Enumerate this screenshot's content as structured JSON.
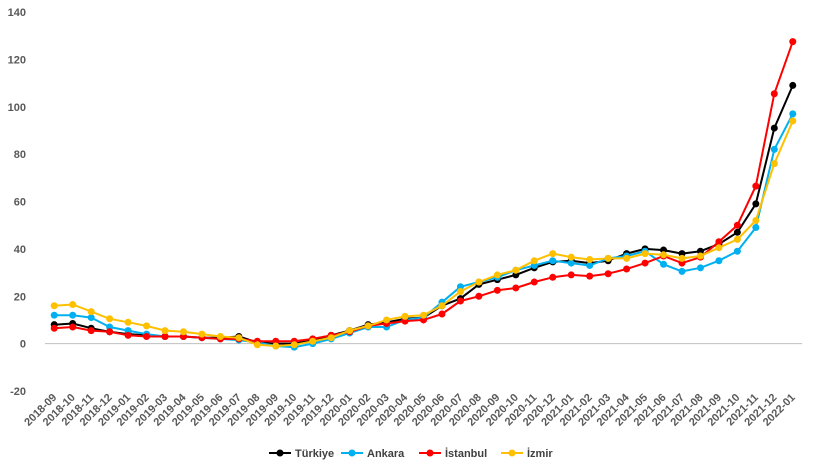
{
  "chart_data": {
    "type": "line",
    "title": "",
    "xlabel": "",
    "ylabel": "",
    "ylim": [
      -20,
      140
    ],
    "y_ticks": [
      -20,
      0,
      20,
      40,
      60,
      80,
      100,
      120,
      140
    ],
    "grid": false,
    "legend_position": "bottom",
    "categories": [
      "2018-09",
      "2018-10",
      "2018-11",
      "2018-12",
      "2019-01",
      "2019-02",
      "2019-03",
      "2019-04",
      "2019-05",
      "2019-06",
      "2019-07",
      "2019-08",
      "2019-09",
      "2019-10",
      "2019-11",
      "2019-12",
      "2020-01",
      "2020-02",
      "2020-03",
      "2020-04",
      "2020-05",
      "2020-06",
      "2020-07",
      "2020-08",
      "2020-09",
      "2020-10",
      "2020-11",
      "2020-12",
      "2021-01",
      "2021-02",
      "2021-03",
      "2021-04",
      "2021-05",
      "2021-06",
      "2021-07",
      "2021-08",
      "2021-09",
      "2021-10",
      "2021-11",
      "2021-12",
      "2022-01"
    ],
    "series": [
      {
        "name": "Türkiye",
        "color": "#000000",
        "values": [
          8,
          8.5,
          6.5,
          5,
          4,
          3.5,
          3,
          3,
          2.5,
          2.5,
          3,
          0.5,
          0,
          0,
          1.5,
          3.5,
          5.5,
          8,
          9,
          10.5,
          11,
          16,
          19,
          25,
          27,
          29,
          32,
          34.5,
          35,
          34,
          35,
          38,
          40,
          39.5,
          38,
          39,
          42,
          47,
          59,
          91,
          109
        ]
      },
      {
        "name": "Ankara",
        "color": "#00B0F0",
        "values": [
          12,
          12,
          11,
          7,
          5.5,
          4,
          3,
          3,
          2.5,
          2,
          1.5,
          0.5,
          -1,
          -1.5,
          0,
          2,
          4.5,
          7,
          7,
          10,
          11,
          17.5,
          24,
          26,
          28,
          31,
          33,
          35,
          34,
          33,
          36,
          37,
          39,
          33.5,
          30.5,
          32,
          35,
          39,
          49,
          82,
          97
        ]
      },
      {
        "name": "İstanbul",
        "color": "#FF0000",
        "values": [
          6.5,
          7,
          5.5,
          5,
          3.5,
          3,
          3,
          3,
          2.5,
          2,
          2,
          1,
          1,
          1,
          2,
          3.5,
          5,
          7.5,
          8.5,
          9.5,
          10,
          12.5,
          18,
          20,
          22.5,
          23.5,
          26,
          28,
          29,
          28.5,
          29.5,
          31.5,
          34,
          37,
          34,
          36.5,
          43,
          50,
          66.5,
          105.5,
          127.5
        ]
      },
      {
        "name": "İzmir",
        "color": "#FFC000",
        "values": [
          16,
          16.5,
          13.5,
          10.5,
          9,
          7.5,
          5.5,
          5,
          4,
          3,
          2.5,
          -0.5,
          -1,
          -0.5,
          1,
          2.5,
          5.5,
          7.5,
          10,
          11.5,
          12,
          16,
          22,
          26,
          29,
          31,
          35,
          38,
          36.5,
          35.5,
          36,
          36,
          38,
          37.5,
          36,
          37,
          40.5,
          44,
          52,
          76,
          94
        ]
      }
    ]
  }
}
